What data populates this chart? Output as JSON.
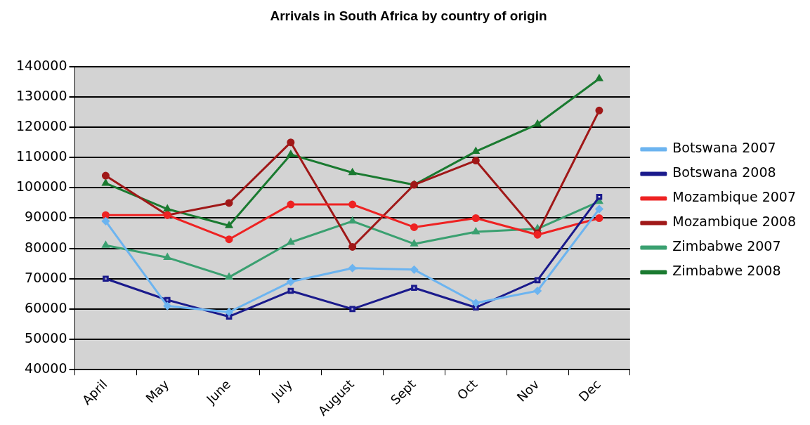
{
  "chart_data": {
    "type": "line",
    "title": "Arrivals in South Africa by country of origin",
    "categories": [
      "April",
      "May",
      "June",
      "July",
      "August",
      "Sept",
      "Oct",
      "Nov",
      "Dec"
    ],
    "series": [
      {
        "name": "Botswana 2007",
        "color": "#6cb4f0",
        "marker": "diamond",
        "values": [
          89000,
          61000,
          59000,
          69000,
          73500,
          73000,
          62000,
          66000,
          93000
        ]
      },
      {
        "name": "Botswana 2008",
        "color": "#1a1a8c",
        "marker": "square",
        "values": [
          70000,
          63000,
          57500,
          66000,
          60000,
          67000,
          60500,
          69500,
          97000
        ]
      },
      {
        "name": "Mozambique 2007",
        "color": "#ee2222",
        "marker": "circle",
        "values": [
          91000,
          91000,
          83000,
          94500,
          94500,
          87000,
          90000,
          84500,
          90000
        ]
      },
      {
        "name": "Mozambique 2008",
        "color": "#a01818",
        "marker": "circle",
        "values": [
          104000,
          91000,
          95000,
          115000,
          80500,
          101000,
          109000,
          85000,
          125500
        ]
      },
      {
        "name": "Zimbabwe 2007",
        "color": "#3aa070",
        "marker": "triangle",
        "values": [
          81000,
          77000,
          70500,
          82000,
          89000,
          81500,
          85500,
          86500,
          95500
        ]
      },
      {
        "name": "Zimbabwe 2008",
        "color": "#1a7a30",
        "marker": "triangle",
        "values": [
          101500,
          93000,
          87500,
          111000,
          105000,
          101000,
          112000,
          121000,
          136000
        ]
      }
    ],
    "ylim": [
      40000,
      140000
    ],
    "yticks": [
      40000,
      50000,
      60000,
      70000,
      80000,
      90000,
      100000,
      110000,
      120000,
      130000,
      140000
    ],
    "grid": "y",
    "legend": "right",
    "line_style": "solid"
  }
}
